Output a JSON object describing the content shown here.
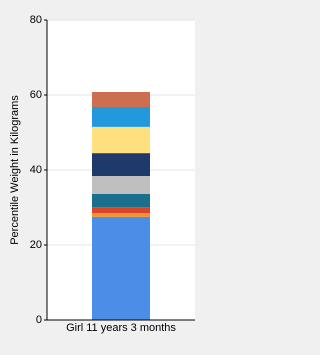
{
  "chart_data": {
    "type": "stacked_bar",
    "y_label": "Percentile Weight in Kilograms",
    "categories": [
      "Girl 11 years 3 months"
    ],
    "series": [
      {
        "color": "#4a8ee8",
        "values": [
          27.5
        ]
      },
      {
        "color": "#f0922e",
        "values": [
          1.0
        ]
      },
      {
        "color": "#d9442a",
        "values": [
          1.6
        ]
      },
      {
        "color": "#1a6f8c",
        "values": [
          3.5
        ]
      },
      {
        "color": "#bfbfbf",
        "values": [
          4.8
        ]
      },
      {
        "color": "#1e3a6b",
        "values": [
          6.1
        ]
      },
      {
        "color": "#ffe07f",
        "values": [
          7.0
        ]
      },
      {
        "color": "#2299dd",
        "values": [
          5.3
        ]
      },
      {
        "color": "#cc6e50",
        "values": [
          4.0
        ]
      }
    ],
    "ylim": [
      0,
      80
    ],
    "yticks": [
      0,
      20,
      40,
      60,
      80
    ],
    "grid": true
  }
}
